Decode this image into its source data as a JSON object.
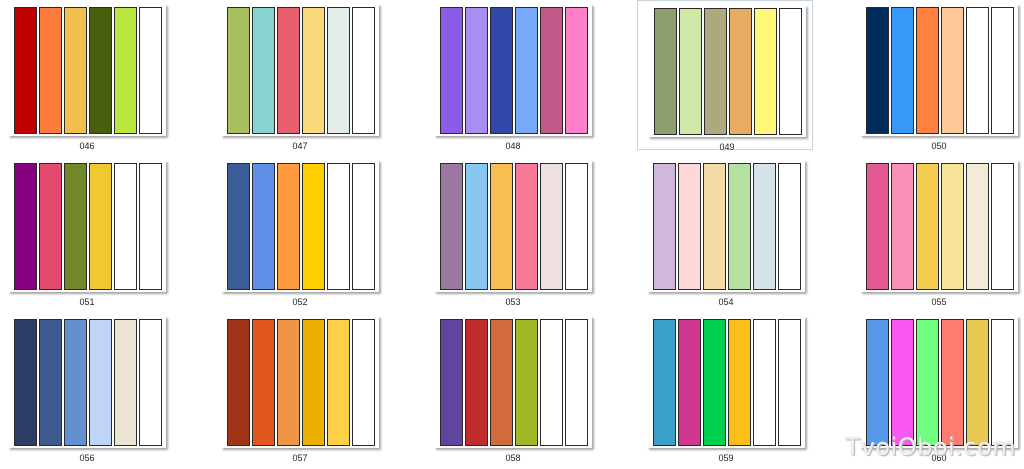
{
  "gallery": {
    "selected_item": "049",
    "items": [
      {
        "label": "046",
        "colors": [
          "#c00000",
          "#ff7a3d",
          "#f0bf50",
          "#4a5e10",
          "#b8e63c",
          "#ffffff"
        ]
      },
      {
        "label": "047",
        "colors": [
          "#a8c060",
          "#88d3d0",
          "#e8606e",
          "#f8d878",
          "#e2ede8",
          "#ffffff"
        ]
      },
      {
        "label": "048",
        "colors": [
          "#8a5ce8",
          "#a88ef0",
          "#3048a8",
          "#78a8f8",
          "#c05888",
          "#ff80c8"
        ]
      },
      {
        "label": "049",
        "colors": [
          "#8ea070",
          "#cfe8a8",
          "#aea87e",
          "#e8ac60",
          "#fff878",
          "#ffffff"
        ]
      },
      {
        "label": "050",
        "colors": [
          "#002c5c",
          "#3898f8",
          "#ff8040",
          "#ffc898",
          "#ffffff",
          "#ffffff"
        ]
      },
      {
        "label": "051",
        "colors": [
          "#860082",
          "#e44a6c",
          "#708828",
          "#f2c832",
          "#ffffff",
          "#ffffff"
        ]
      },
      {
        "label": "052",
        "colors": [
          "#3a5c98",
          "#6090e8",
          "#ff9a40",
          "#ffd000",
          "#ffffff",
          "#ffffff"
        ]
      },
      {
        "label": "053",
        "colors": [
          "#9a78a0",
          "#88c8f0",
          "#f8be50",
          "#f87898",
          "#ece0e0",
          "#ffffff"
        ]
      },
      {
        "label": "054",
        "colors": [
          "#d0b8dc",
          "#fcd8d8",
          "#f4dca8",
          "#b4e0a0",
          "#d4e2ea",
          "#ffffff"
        ]
      },
      {
        "label": "055",
        "colors": [
          "#e45894",
          "#f890b8",
          "#f4cc50",
          "#f8e498",
          "#f4ead8",
          "#ffffff"
        ]
      },
      {
        "label": "056",
        "colors": [
          "#2c3c64",
          "#3e5890",
          "#6490d0",
          "#c0d4f8",
          "#ece4d2",
          "#ffffff"
        ]
      },
      {
        "label": "057",
        "colors": [
          "#a03418",
          "#e05820",
          "#f09448",
          "#ecb000",
          "#ffd048",
          "#ffffff"
        ]
      },
      {
        "label": "058",
        "colors": [
          "#6044a0",
          "#c02c2c",
          "#d06c3c",
          "#a0b828",
          "#ffffff",
          "#ffffff"
        ]
      },
      {
        "label": "059",
        "colors": [
          "#3aa0c8",
          "#d03890",
          "#00d050",
          "#f8c018",
          "#ffffff",
          "#ffffff"
        ]
      },
      {
        "label": "060",
        "colors": [
          "#5898e8",
          "#f858f0",
          "#70ff80",
          "#ff7c70",
          "#e8c850",
          "#ffffff"
        ]
      }
    ]
  },
  "watermark": {
    "text": "TvoiOboi.com"
  }
}
